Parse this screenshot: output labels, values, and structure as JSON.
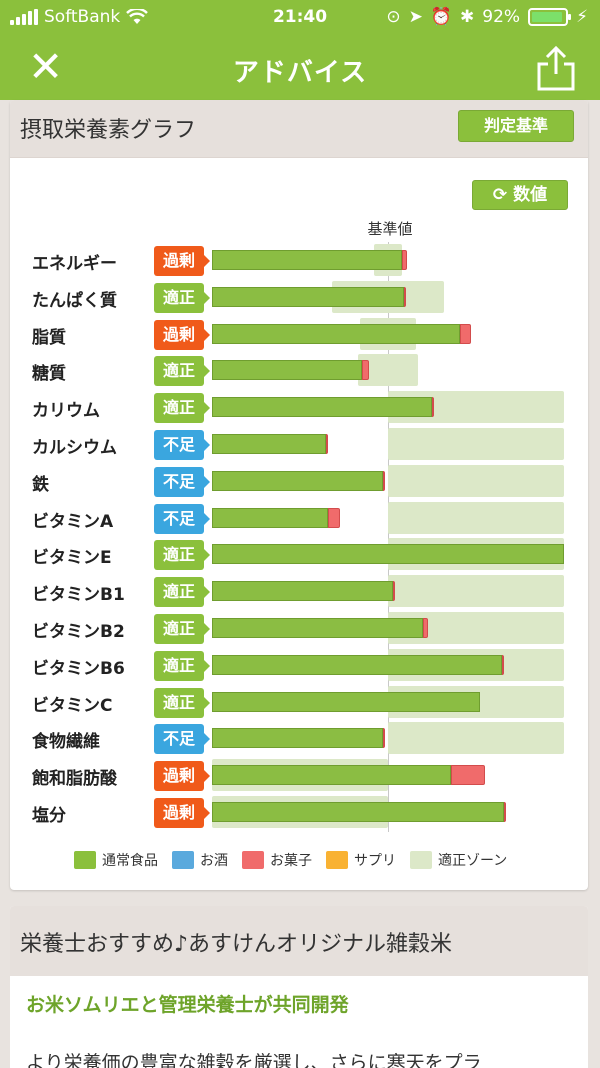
{
  "status": {
    "carrier": "SoftBank",
    "time": "21:40",
    "battery": "92%",
    "battery_fraction": 0.92
  },
  "nav": {
    "title": "アドバイス"
  },
  "section": {
    "title": "摂取栄養素グラフ",
    "criteria_button": "判定基準",
    "value_button": "数値",
    "reference_label": "基準値"
  },
  "colors": {
    "accent": "#8bc03c",
    "excess": "#f05a1a",
    "ok": "#8bc03c",
    "short": "#3aa6df",
    "zone": "#dce8c8",
    "sweet": "#f06b6b",
    "supplement": "#f9b233",
    "alcohol": "#5aa9dd"
  },
  "chart_data": {
    "type": "bar",
    "title": "摂取栄養素グラフ",
    "reference": "基準値",
    "note": "Values are percent of reference (基準値 = 100). Zone = 適正ゾーン range.",
    "nutrients": [
      {
        "name": "エネルギー",
        "status": "過剰",
        "food": 108,
        "sweets": 3,
        "zone": [
          92,
          108
        ]
      },
      {
        "name": "たんぱく質",
        "status": "適正",
        "food": 109,
        "sweets": 1,
        "zone": [
          68,
          132
        ]
      },
      {
        "name": "脂質",
        "status": "過剰",
        "food": 141,
        "sweets": 6,
        "zone": [
          84,
          116
        ]
      },
      {
        "name": "糖質",
        "status": "適正",
        "food": 85,
        "sweets": 4,
        "zone": [
          83,
          117
        ]
      },
      {
        "name": "カリウム",
        "status": "適正",
        "food": 125,
        "sweets": 1,
        "zone": [
          100,
          200
        ]
      },
      {
        "name": "カルシウム",
        "status": "不足",
        "food": 65,
        "sweets": 1,
        "zone": [
          100,
          200
        ]
      },
      {
        "name": "鉄",
        "status": "不足",
        "food": 97,
        "sweets": 1,
        "zone": [
          100,
          200
        ]
      },
      {
        "name": "ビタミンA",
        "status": "不足",
        "food": 66,
        "sweets": 7,
        "zone": [
          100,
          200
        ]
      },
      {
        "name": "ビタミンE",
        "status": "適正",
        "food": 200,
        "sweets": 0,
        "zone": [
          100,
          200
        ]
      },
      {
        "name": "ビタミンB1",
        "status": "適正",
        "food": 103,
        "sweets": 1,
        "zone": [
          100,
          200
        ]
      },
      {
        "name": "ビタミンB2",
        "status": "適正",
        "food": 120,
        "sweets": 3,
        "zone": [
          100,
          200
        ]
      },
      {
        "name": "ビタミンB6",
        "status": "適正",
        "food": 165,
        "sweets": 1,
        "zone": [
          100,
          200
        ]
      },
      {
        "name": "ビタミンC",
        "status": "適正",
        "food": 152,
        "sweets": 0,
        "zone": [
          100,
          200
        ]
      },
      {
        "name": "食物繊維",
        "status": "不足",
        "food": 97,
        "sweets": 1,
        "zone": [
          100,
          200
        ]
      },
      {
        "name": "飽和脂肪酸",
        "status": "過剰",
        "food": 136,
        "sweets": 19,
        "zone": [
          0,
          100
        ]
      },
      {
        "name": "塩分",
        "status": "過剰",
        "food": 166,
        "sweets": 1,
        "zone": [
          0,
          100
        ]
      }
    ],
    "legend": [
      "通常食品",
      "お酒",
      "お菓子",
      "サプリ",
      "適正ゾーン"
    ],
    "xlim": [
      0,
      200
    ]
  },
  "recommend": {
    "title": "栄養士おすすめ♪あすけんオリジナル雑穀米",
    "subtitle": "お米ソムリエと管理栄養士が共同開発",
    "body": "より栄養価の豊富な雑穀を厳選し、さらに寒天をプラ"
  }
}
